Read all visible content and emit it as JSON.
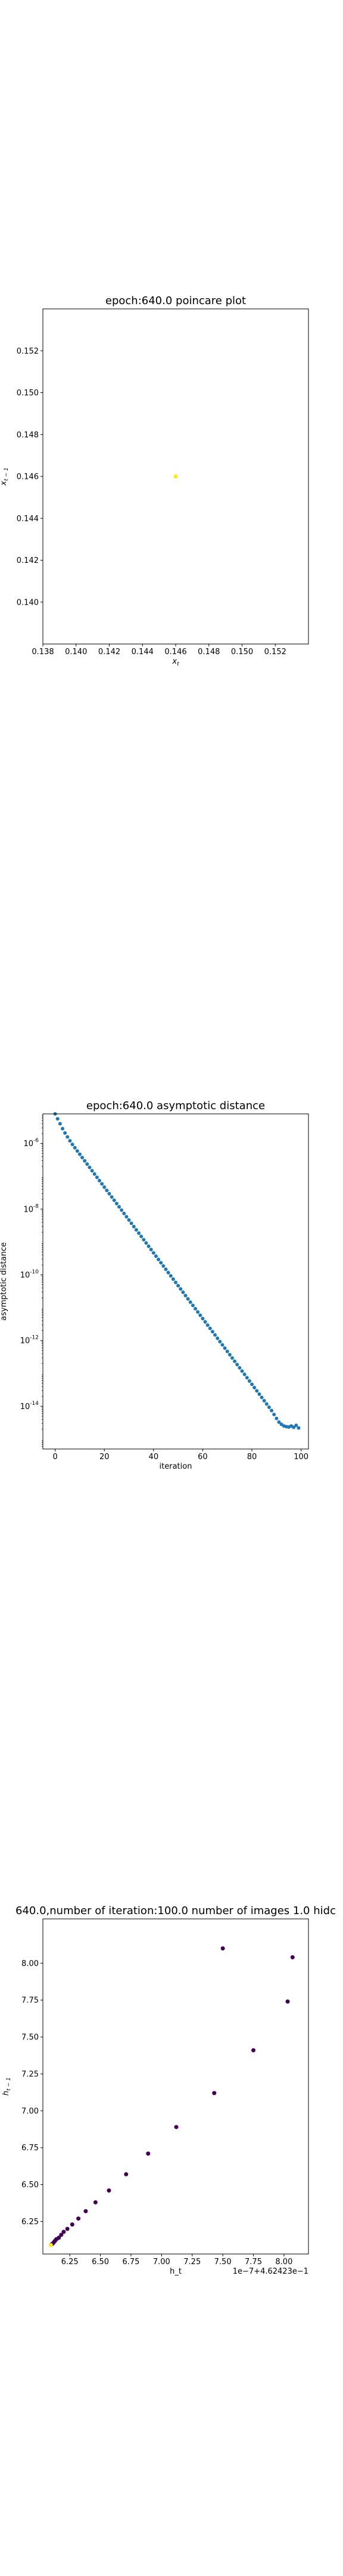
{
  "chart_data": [
    {
      "type": "scatter",
      "title": "epoch:640.0 poincare plot",
      "xlabel": "x_t",
      "ylabel": "x_{t-1}",
      "xlim": [
        0.138,
        0.154
      ],
      "ylim": [
        0.138,
        0.154
      ],
      "xticks": [
        "0.138",
        "0.140",
        "0.142",
        "0.144",
        "0.146",
        "0.148",
        "0.150",
        "0.152"
      ],
      "yticks": [
        "0.140",
        "0.142",
        "0.144",
        "0.146",
        "0.148",
        "0.150",
        "0.152"
      ],
      "grid": false,
      "points": [
        {
          "x": 0.146,
          "y": 0.146,
          "color": "#fde725"
        }
      ]
    },
    {
      "type": "scatter",
      "title": "epoch:640.0 asymptotic distance",
      "xlabel": "iteration",
      "ylabel": "asymptotic distance",
      "xlim": [
        -5,
        103
      ],
      "ylim_log10": [
        -15.3,
        -5.1
      ],
      "yscale": "log",
      "xticks": [
        "0",
        "20",
        "40",
        "60",
        "80",
        "100"
      ],
      "ytick_exponents": [
        "-6",
        "-8",
        "-10",
        "-12",
        "-14"
      ],
      "grid": false,
      "color": "#1f77b4",
      "x": [
        0,
        1,
        2,
        3,
        4,
        5,
        6,
        7,
        8,
        9,
        10,
        11,
        12,
        13,
        14,
        15,
        16,
        17,
        18,
        19,
        20,
        21,
        22,
        23,
        24,
        25,
        26,
        27,
        28,
        29,
        30,
        31,
        32,
        33,
        34,
        35,
        36,
        37,
        38,
        39,
        40,
        41,
        42,
        43,
        44,
        45,
        46,
        47,
        48,
        49,
        50,
        51,
        52,
        53,
        54,
        55,
        56,
        57,
        58,
        59,
        60,
        61,
        62,
        63,
        64,
        65,
        66,
        67,
        68,
        69,
        70,
        71,
        72,
        73,
        74,
        75,
        76,
        77,
        78,
        79,
        80,
        81,
        82,
        83,
        84,
        85,
        86,
        87,
        88,
        89,
        90,
        91,
        92,
        93,
        94,
        95,
        96,
        97,
        98,
        99
      ],
      "log10_y": [
        -5.1,
        -5.25,
        -5.4,
        -5.55,
        -5.68,
        -5.8,
        -5.92,
        -6.03,
        -6.13,
        -6.23,
        -6.33,
        -6.43,
        -6.53,
        -6.63,
        -6.73,
        -6.83,
        -6.93,
        -7.03,
        -7.13,
        -7.23,
        -7.33,
        -7.43,
        -7.53,
        -7.63,
        -7.73,
        -7.83,
        -7.93,
        -8.03,
        -8.13,
        -8.23,
        -8.33,
        -8.43,
        -8.53,
        -8.63,
        -8.73,
        -8.83,
        -8.93,
        -9.03,
        -9.13,
        -9.23,
        -9.33,
        -9.43,
        -9.53,
        -9.63,
        -9.73,
        -9.83,
        -9.93,
        -10.03,
        -10.13,
        -10.23,
        -10.33,
        -10.43,
        -10.53,
        -10.63,
        -10.73,
        -10.83,
        -10.93,
        -11.03,
        -11.13,
        -11.23,
        -11.33,
        -11.43,
        -11.53,
        -11.63,
        -11.73,
        -11.83,
        -11.93,
        -12.03,
        -12.13,
        -12.23,
        -12.33,
        -12.43,
        -12.53,
        -12.63,
        -12.73,
        -12.83,
        -12.93,
        -13.03,
        -13.13,
        -13.23,
        -13.33,
        -13.43,
        -13.53,
        -13.63,
        -13.73,
        -13.83,
        -13.93,
        -14.03,
        -14.13,
        -14.25,
        -14.37,
        -14.48,
        -14.55,
        -14.6,
        -14.62,
        -14.63,
        -14.6,
        -14.64,
        -14.58,
        -14.66
      ]
    },
    {
      "type": "scatter",
      "title": "640.0,number of iteration:100.0  number of images 1.0 hidc",
      "xlabel": "h_t",
      "ylabel": "h_{t-1}",
      "x_offset_text": "1e−7+4.62423e−1",
      "xlim": [
        6.03,
        8.2
      ],
      "ylim": [
        6.03,
        8.3
      ],
      "xticks": [
        "6.25",
        "6.50",
        "6.75",
        "7.00",
        "7.25",
        "7.50",
        "7.75",
        "8.00"
      ],
      "yticks": [
        "6.25",
        "6.50",
        "6.75",
        "7.00",
        "7.25",
        "7.50",
        "7.75",
        "8.00"
      ],
      "grid": false,
      "points": [
        {
          "x": 8.07,
          "y": 8.04,
          "color": "#440154"
        },
        {
          "x": 7.5,
          "y": 8.1,
          "color": "#440154"
        },
        {
          "x": 8.03,
          "y": 7.74,
          "color": "#440154"
        },
        {
          "x": 7.75,
          "y": 7.41,
          "color": "#440154"
        },
        {
          "x": 7.43,
          "y": 7.12,
          "color": "#440154"
        },
        {
          "x": 7.12,
          "y": 6.89,
          "color": "#440154"
        },
        {
          "x": 6.89,
          "y": 6.71,
          "color": "#440154"
        },
        {
          "x": 6.71,
          "y": 6.57,
          "color": "#440154"
        },
        {
          "x": 6.57,
          "y": 6.46,
          "color": "#440154"
        },
        {
          "x": 6.46,
          "y": 6.38,
          "color": "#440154"
        },
        {
          "x": 6.38,
          "y": 6.32,
          "color": "#440154"
        },
        {
          "x": 6.32,
          "y": 6.27,
          "color": "#440154"
        },
        {
          "x": 6.27,
          "y": 6.23,
          "color": "#440154"
        },
        {
          "x": 6.23,
          "y": 6.2,
          "color": "#440154"
        },
        {
          "x": 6.2,
          "y": 6.18,
          "color": "#440154"
        },
        {
          "x": 6.18,
          "y": 6.16,
          "color": "#440154"
        },
        {
          "x": 6.16,
          "y": 6.14,
          "color": "#440154"
        },
        {
          "x": 6.14,
          "y": 6.13,
          "color": "#440154"
        },
        {
          "x": 6.13,
          "y": 6.12,
          "color": "#440154"
        },
        {
          "x": 6.12,
          "y": 6.11,
          "color": "#440154"
        },
        {
          "x": 6.11,
          "y": 6.1,
          "color": "#440154"
        },
        {
          "x": 6.1,
          "y": 6.095,
          "color": "#440154"
        },
        {
          "x": 6.095,
          "y": 6.09,
          "color": "#fde725"
        }
      ]
    }
  ]
}
